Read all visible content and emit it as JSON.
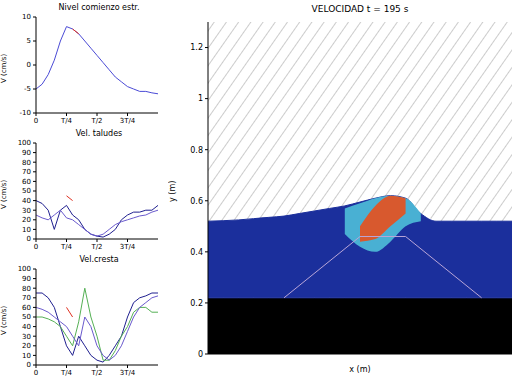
{
  "chart_data": [
    {
      "type": "line",
      "title": "Nivel comienzo estr.",
      "y_label": "V (cm/s)",
      "x": [
        0,
        0.05,
        0.1,
        0.15,
        0.2,
        0.25,
        0.3,
        0.35,
        0.4,
        0.45,
        0.5,
        0.55,
        0.6,
        0.65,
        0.7,
        0.75,
        0.8,
        0.85,
        0.9,
        0.95,
        1
      ],
      "xlim": [
        0,
        1
      ],
      "xticks": [
        0,
        {
          "value": 0.25,
          "label": "T/4"
        },
        {
          "value": 0.5,
          "label": "T/2"
        },
        {
          "value": 0.75,
          "label": "3T/4"
        }
      ],
      "ylim": [
        -10,
        10
      ],
      "yticks": [
        -10,
        -5,
        0,
        5,
        10
      ],
      "series": [
        {
          "color": "#4b4bd6",
          "values": [
            -5,
            -4,
            -2,
            1,
            5,
            8,
            7.5,
            6.5,
            5,
            3.5,
            2,
            0.5,
            -1,
            -2.5,
            -3.5,
            -4.5,
            -5,
            -5.5,
            -5.5,
            -5.8,
            -6
          ]
        },
        {
          "color": "#e03020",
          "values": [
            null,
            null,
            null,
            null,
            null,
            null,
            7.5,
            6.5,
            null,
            null,
            null,
            null,
            null,
            null,
            null,
            null,
            null,
            null,
            null,
            null,
            null
          ]
        }
      ]
    },
    {
      "type": "line",
      "title": "Vel. taludes",
      "y_label": "V (cm/s)",
      "x": [
        0,
        0.05,
        0.1,
        0.15,
        0.2,
        0.25,
        0.3,
        0.35,
        0.4,
        0.45,
        0.5,
        0.55,
        0.6,
        0.65,
        0.7,
        0.75,
        0.8,
        0.85,
        0.9,
        0.95,
        1
      ],
      "xlim": [
        0,
        1
      ],
      "xticks": [
        0,
        {
          "value": 0.25,
          "label": "T/4"
        },
        {
          "value": 0.5,
          "label": "T/2"
        },
        {
          "value": 0.75,
          "label": "3T/4"
        }
      ],
      "ylim": [
        0,
        100
      ],
      "yticks": [
        0,
        10,
        20,
        30,
        40,
        50,
        60,
        70,
        80,
        90,
        100
      ],
      "series": [
        {
          "color": "#1f1f8f",
          "values": [
            40,
            37,
            30,
            10,
            30,
            35,
            25,
            20,
            10,
            5,
            3,
            2,
            5,
            10,
            20,
            25,
            28,
            28,
            30,
            30,
            35
          ]
        },
        {
          "color": "#6a5acd",
          "values": [
            25,
            22,
            20,
            25,
            30,
            22,
            20,
            15,
            10,
            5,
            3,
            5,
            10,
            15,
            18,
            20,
            22,
            24,
            25,
            28,
            30
          ]
        },
        {
          "color": "#e03020",
          "values": [
            null,
            null,
            null,
            null,
            null,
            45,
            40,
            null,
            null,
            null,
            null,
            null,
            null,
            null,
            null,
            null,
            null,
            null,
            null,
            null,
            null
          ]
        }
      ]
    },
    {
      "type": "line",
      "title": "Vel.cresta",
      "y_label": "V (cm/s)",
      "x": [
        0,
        0.05,
        0.1,
        0.15,
        0.2,
        0.25,
        0.3,
        0.35,
        0.4,
        0.45,
        0.5,
        0.55,
        0.6,
        0.65,
        0.7,
        0.75,
        0.8,
        0.85,
        0.9,
        0.95,
        1
      ],
      "xlim": [
        0,
        1
      ],
      "xticks": [
        0,
        {
          "value": 0.25,
          "label": "T/4"
        },
        {
          "value": 0.5,
          "label": "T/2"
        },
        {
          "value": 0.75,
          "label": "3T/4"
        }
      ],
      "ylim": [
        0,
        100
      ],
      "yticks": [
        0,
        10,
        20,
        30,
        40,
        50,
        60,
        70,
        80,
        90,
        100
      ],
      "series": [
        {
          "color": "#1f1f8f",
          "values": [
            75,
            75,
            70,
            60,
            40,
            20,
            10,
            30,
            20,
            10,
            5,
            3,
            10,
            20,
            30,
            50,
            65,
            70,
            72,
            75,
            75
          ]
        },
        {
          "color": "#55b055",
          "values": [
            50,
            50,
            48,
            45,
            40,
            30,
            20,
            45,
            80,
            50,
            30,
            5,
            5,
            15,
            30,
            40,
            55,
            60,
            60,
            55,
            55
          ]
        },
        {
          "color": "#6a5acd",
          "values": [
            60,
            58,
            55,
            50,
            45,
            40,
            30,
            20,
            50,
            40,
            20,
            10,
            5,
            10,
            20,
            35,
            50,
            60,
            65,
            70,
            72
          ]
        },
        {
          "color": "#e03020",
          "values": [
            null,
            null,
            null,
            null,
            null,
            60,
            50,
            null,
            null,
            null,
            null,
            null,
            null,
            null,
            null,
            null,
            null,
            null,
            null,
            null,
            null
          ]
        }
      ]
    },
    {
      "type": "area",
      "title": "VELOCIDAD t = 195 s",
      "x_label": "x (m)",
      "y_label": "y (m)",
      "tick_labels": "y",
      "x": [
        0,
        0.5,
        1,
        1.5,
        2,
        2.5,
        3,
        3.5,
        4,
        4.5,
        5,
        5.5,
        6,
        6.5,
        7,
        7.5,
        8,
        8.5,
        9,
        9.5,
        10
      ],
      "xlim": [
        0,
        10
      ],
      "ylim": [
        0,
        1.3
      ],
      "yticks": [
        0,
        0.2,
        0.4,
        0.6,
        0.8,
        1,
        1.2
      ],
      "series": [
        {
          "type": "bed",
          "color": "#000000",
          "values": [
            0.22,
            0.22,
            0.22,
            0.22,
            0.22,
            0.22,
            0.22,
            0.22,
            0.22,
            0.22,
            0.22,
            0.22,
            0.22,
            0.22,
            0.22,
            0.22,
            0.22,
            0.22,
            0.22,
            0.22,
            0.22
          ]
        },
        {
          "type": "water",
          "color": "#1b2f9c",
          "values": [
            0.52,
            0.522,
            0.525,
            0.53,
            0.535,
            0.54,
            0.55,
            0.56,
            0.57,
            0.58,
            0.595,
            0.61,
            0.62,
            0.61,
            0.55,
            0.52,
            0.52,
            0.52,
            0.52,
            0.52,
            0.52
          ]
        },
        {
          "type": "band",
          "color": "#4fbfd9",
          "low": [
            null,
            null,
            null,
            null,
            null,
            null,
            null,
            null,
            null,
            0.47,
            0.42,
            0.4,
            0.44,
            0.5,
            0.52,
            null,
            null,
            null,
            null,
            null,
            null
          ],
          "high": [
            null,
            null,
            null,
            null,
            null,
            null,
            null,
            null,
            null,
            0.57,
            0.59,
            0.61,
            0.62,
            0.61,
            0.55,
            null,
            null,
            null,
            null,
            null,
            null
          ]
        },
        {
          "type": "band",
          "color": "#e8501c",
          "low": [
            null,
            null,
            null,
            null,
            null,
            null,
            null,
            null,
            null,
            null,
            0.44,
            0.45,
            0.5,
            0.55,
            null,
            null,
            null,
            null,
            null,
            null,
            null
          ],
          "high": [
            null,
            null,
            null,
            null,
            null,
            null,
            null,
            null,
            null,
            null,
            0.5,
            0.58,
            0.62,
            0.61,
            null,
            null,
            null,
            null,
            null,
            null,
            null
          ]
        },
        {
          "type": "outline",
          "color": "#b9a6d8",
          "values": [
            null,
            null,
            null,
            null,
            null,
            0.22,
            null,
            null,
            null,
            null,
            0.46,
            null,
            null,
            0.46,
            null,
            null,
            null,
            null,
            0.22,
            null,
            null
          ]
        }
      ]
    }
  ]
}
